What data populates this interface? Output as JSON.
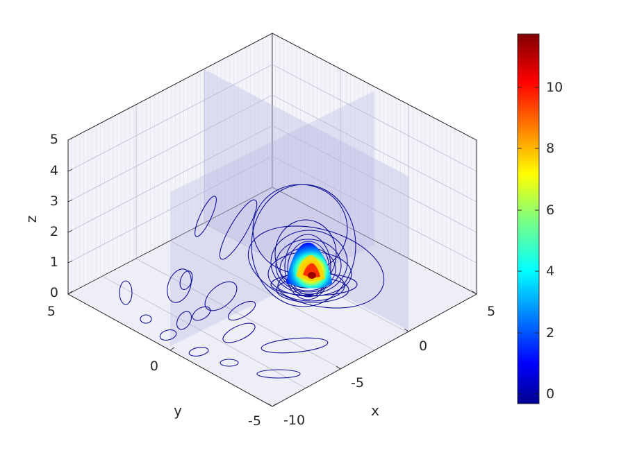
{
  "chart_data": {
    "type": "contour3-slices",
    "xlabel": "x",
    "ylabel": "y",
    "zlabel": "z",
    "xlim": [
      -10,
      5
    ],
    "ylim": [
      -5,
      5
    ],
    "zlim": [
      0,
      5
    ],
    "x_ticks": [
      "-10",
      "-5",
      "0",
      "5"
    ],
    "y_ticks": [
      "-5",
      "0",
      "5"
    ],
    "z_ticks": [
      "0",
      "1",
      "2",
      "3",
      "4",
      "5"
    ],
    "grid": true,
    "colormap": "jet",
    "colorbar": {
      "range": [
        -0.6,
        11.7
      ],
      "ticks": [
        "0",
        "2",
        "4",
        "6",
        "8",
        "10"
      ],
      "placement": "right"
    },
    "peak": {
      "x": 0,
      "y": 0,
      "z": 0.5,
      "value": 11.7
    },
    "colors": {
      "contour_line": "#0c0c9a",
      "slice_fill": "#b4b4e0",
      "grid_line": "#9a9ab8",
      "axis_line": "#262626"
    }
  }
}
